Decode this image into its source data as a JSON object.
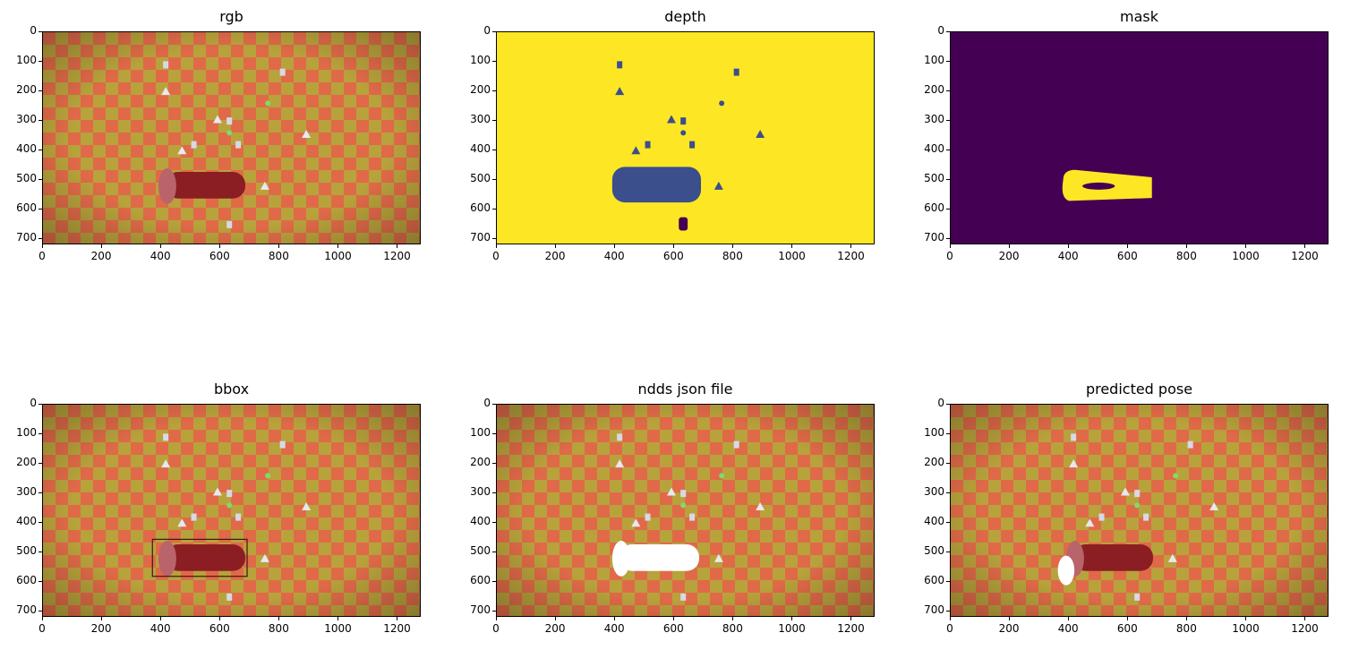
{
  "panels": [
    {
      "title": "rgb",
      "kind": "rgb"
    },
    {
      "title": "depth",
      "kind": "depth"
    },
    {
      "title": "mask",
      "kind": "mask"
    },
    {
      "title": "bbox",
      "kind": "bbox"
    },
    {
      "title": "ndds json file",
      "kind": "ndds"
    },
    {
      "title": "predicted pose",
      "kind": "pose"
    }
  ],
  "axes": {
    "x_ticks": [
      "0",
      "200",
      "400",
      "600",
      "800",
      "1000",
      "1200"
    ],
    "y_ticks": [
      "0",
      "100",
      "200",
      "300",
      "400",
      "500",
      "600",
      "700"
    ],
    "x_values": [
      0,
      200,
      400,
      600,
      800,
      1000,
      1200
    ],
    "y_values": [
      0,
      100,
      200,
      300,
      400,
      500,
      600,
      700
    ],
    "x_range": [
      0,
      1280
    ],
    "y_range": [
      0,
      720
    ]
  },
  "colors": {
    "checker_a": "#e06a48",
    "checker_b": "#b8a23c",
    "depth_bg": "#fde725",
    "depth_obj": "#3b4f8c",
    "mask_bg": "#440154",
    "mask_fg": "#fde725",
    "can_red": "#8a1e22",
    "bbox_edge": "#3a1a10"
  }
}
